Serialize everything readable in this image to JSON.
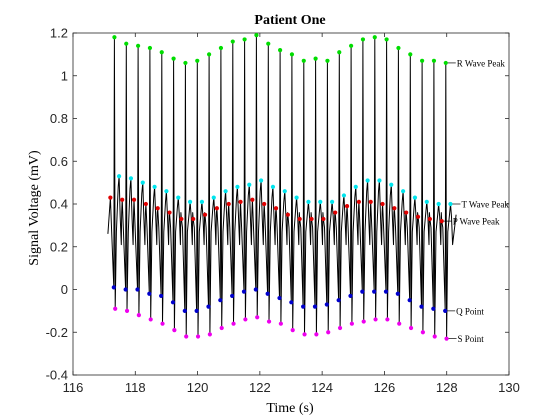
{
  "chart_data": {
    "type": "line",
    "title": "Patient One",
    "xlabel": "Time (s)",
    "ylabel": "Signal Voltage (mV)",
    "xlim": [
      116,
      130
    ],
    "ylim": [
      -0.4,
      1.2
    ],
    "xticks": [
      116,
      118,
      120,
      122,
      124,
      126,
      128,
      130
    ],
    "xtick_labels": [
      "116",
      "118",
      "120",
      "122",
      "124",
      "126",
      "128",
      "130"
    ],
    "yticks": [
      -0.4,
      -0.2,
      0,
      0.2,
      0.4,
      0.6,
      0.8,
      1,
      1.2
    ],
    "ytick_labels": [
      "-0.4",
      "-0.2",
      "0",
      "0.2",
      "0.4",
      "0.6",
      "0.8",
      "1",
      "1.2"
    ],
    "grid": false,
    "beats": [
      {
        "r": 117.33,
        "rv": 1.18,
        "q": 0.01,
        "s": -0.09,
        "t": 117.48,
        "tv": 0.53,
        "p": 117.2,
        "pv": 0.43
      },
      {
        "r": 117.71,
        "rv": 1.15,
        "q": 0.0,
        "s": -0.1,
        "t": 117.86,
        "tv": 0.52,
        "p": 117.58,
        "pv": 0.42
      },
      {
        "r": 118.09,
        "rv": 1.14,
        "q": 0.0,
        "s": -0.12,
        "t": 118.24,
        "tv": 0.5,
        "p": 117.96,
        "pv": 0.42
      },
      {
        "r": 118.47,
        "rv": 1.13,
        "q": -0.02,
        "s": -0.14,
        "t": 118.62,
        "tv": 0.48,
        "p": 118.34,
        "pv": 0.4
      },
      {
        "r": 118.85,
        "rv": 1.11,
        "q": -0.03,
        "s": -0.16,
        "t": 119.0,
        "tv": 0.46,
        "p": 118.72,
        "pv": 0.38
      },
      {
        "r": 119.23,
        "rv": 1.08,
        "q": -0.06,
        "s": -0.19,
        "t": 119.38,
        "tv": 0.43,
        "p": 119.1,
        "pv": 0.36
      },
      {
        "r": 119.61,
        "rv": 1.06,
        "q": -0.1,
        "s": -0.22,
        "t": 119.76,
        "tv": 0.41,
        "p": 119.48,
        "pv": 0.33
      },
      {
        "r": 119.99,
        "rv": 1.07,
        "q": -0.1,
        "s": -0.22,
        "t": 120.14,
        "tv": 0.41,
        "p": 119.86,
        "pv": 0.33
      },
      {
        "r": 120.37,
        "rv": 1.1,
        "q": -0.08,
        "s": -0.21,
        "t": 120.52,
        "tv": 0.43,
        "p": 120.24,
        "pv": 0.35
      },
      {
        "r": 120.75,
        "rv": 1.13,
        "q": -0.05,
        "s": -0.18,
        "t": 120.9,
        "tv": 0.46,
        "p": 120.62,
        "pv": 0.38
      },
      {
        "r": 121.13,
        "rv": 1.16,
        "q": -0.03,
        "s": -0.16,
        "t": 121.28,
        "tv": 0.48,
        "p": 121.0,
        "pv": 0.4
      },
      {
        "r": 121.51,
        "rv": 1.17,
        "q": -0.01,
        "s": -0.14,
        "t": 121.66,
        "tv": 0.49,
        "p": 121.38,
        "pv": 0.41
      },
      {
        "r": 121.89,
        "rv": 1.19,
        "q": 0.0,
        "s": -0.13,
        "t": 122.04,
        "tv": 0.51,
        "p": 121.76,
        "pv": 0.42
      },
      {
        "r": 122.27,
        "rv": 1.15,
        "q": -0.02,
        "s": -0.15,
        "t": 122.42,
        "tv": 0.48,
        "p": 122.14,
        "pv": 0.4
      },
      {
        "r": 122.65,
        "rv": 1.12,
        "q": -0.04,
        "s": -0.16,
        "t": 122.8,
        "tv": 0.46,
        "p": 122.52,
        "pv": 0.38
      },
      {
        "r": 123.03,
        "rv": 1.1,
        "q": -0.06,
        "s": -0.19,
        "t": 123.18,
        "tv": 0.43,
        "p": 122.9,
        "pv": 0.35
      },
      {
        "r": 123.41,
        "rv": 1.07,
        "q": -0.08,
        "s": -0.21,
        "t": 123.56,
        "tv": 0.41,
        "p": 123.28,
        "pv": 0.33
      },
      {
        "r": 123.79,
        "rv": 1.08,
        "q": -0.08,
        "s": -0.21,
        "t": 123.94,
        "tv": 0.41,
        "p": 123.66,
        "pv": 0.33
      },
      {
        "r": 124.17,
        "rv": 1.07,
        "q": -0.07,
        "s": -0.2,
        "t": 124.32,
        "tv": 0.41,
        "p": 124.04,
        "pv": 0.33
      },
      {
        "r": 124.55,
        "rv": 1.11,
        "q": -0.05,
        "s": -0.18,
        "t": 124.7,
        "tv": 0.44,
        "p": 124.42,
        "pv": 0.36
      },
      {
        "r": 124.93,
        "rv": 1.14,
        "q": -0.03,
        "s": -0.16,
        "t": 125.08,
        "tv": 0.48,
        "p": 124.8,
        "pv": 0.39
      },
      {
        "r": 125.31,
        "rv": 1.17,
        "q": -0.01,
        "s": -0.15,
        "t": 125.46,
        "tv": 0.51,
        "p": 125.18,
        "pv": 0.41
      },
      {
        "r": 125.69,
        "rv": 1.18,
        "q": -0.01,
        "s": -0.14,
        "t": 125.84,
        "tv": 0.51,
        "p": 125.56,
        "pv": 0.41
      },
      {
        "r": 126.07,
        "rv": 1.17,
        "q": -0.01,
        "s": -0.14,
        "t": 126.22,
        "tv": 0.49,
        "p": 125.94,
        "pv": 0.4
      },
      {
        "r": 126.45,
        "rv": 1.13,
        "q": -0.02,
        "s": -0.16,
        "t": 126.6,
        "tv": 0.46,
        "p": 126.32,
        "pv": 0.38
      },
      {
        "r": 126.83,
        "rv": 1.1,
        "q": -0.05,
        "s": -0.18,
        "t": 126.98,
        "tv": 0.43,
        "p": 126.7,
        "pv": 0.36
      },
      {
        "r": 127.21,
        "rv": 1.07,
        "q": -0.08,
        "s": -0.2,
        "t": 127.36,
        "tv": 0.41,
        "p": 127.08,
        "pv": 0.34
      },
      {
        "r": 127.59,
        "rv": 1.07,
        "q": -0.09,
        "s": -0.22,
        "t": 127.74,
        "tv": 0.4,
        "p": 127.46,
        "pv": 0.33
      },
      {
        "r": 127.97,
        "rv": 1.06,
        "q": -0.1,
        "s": -0.23,
        "t": 128.12,
        "tv": 0.4,
        "p": 127.84,
        "pv": 0.32
      }
    ],
    "start": {
      "x": 117.12,
      "y": 0.26
    },
    "end": {
      "x": 128.3,
      "y": 0.35
    },
    "series": [
      {
        "name": "R Wave Peak",
        "color": "#00dd00",
        "label": "R Wave Peak"
      },
      {
        "name": "T Wave Peak",
        "color": "#00e5ee",
        "label": "T Wave Peak"
      },
      {
        "name": "P Wave Peak",
        "color": "#e00000",
        "label": "P Wave Peak"
      },
      {
        "name": "Q Point",
        "color": "#0000cc",
        "label": "Q Point"
      },
      {
        "name": "S Point",
        "color": "#ee00ee",
        "label": "S Point"
      }
    ],
    "trace_color": "#000000",
    "annotations": [
      {
        "text": "R Wave Peak",
        "series": "R Wave Peak",
        "beat": 28
      },
      {
        "text": "T Wave Peak",
        "series": "T Wave Peak",
        "beat": 28
      },
      {
        "text": "P Wave Peak",
        "series": "P Wave Peak",
        "beat": 28
      },
      {
        "text": "Q Point",
        "series": "Q Point",
        "beat": 28
      },
      {
        "text": "S Point",
        "series": "S Point",
        "beat": 28
      }
    ]
  }
}
